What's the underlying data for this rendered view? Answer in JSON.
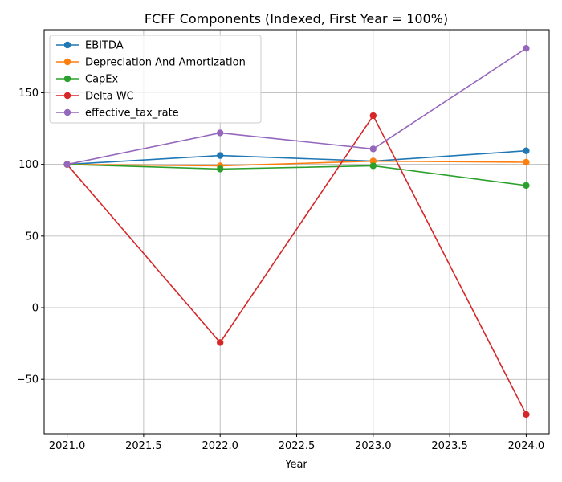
{
  "chart_data": {
    "type": "line",
    "title": "FCFF Components (Indexed, First Year = 100%)",
    "xlabel": "Year",
    "ylabel": "",
    "x": [
      2021,
      2022,
      2023,
      2024
    ],
    "xlim": [
      2020.85,
      2024.15
    ],
    "ylim": [
      -88,
      194
    ],
    "xticks": [
      2021.0,
      2021.5,
      2022.0,
      2022.5,
      2023.0,
      2023.5,
      2024.0
    ],
    "xtick_labels": [
      "2021.0",
      "2021.5",
      "2022.0",
      "2022.5",
      "2023.0",
      "2023.5",
      "2024.0"
    ],
    "yticks": [
      -50,
      0,
      50,
      100,
      150
    ],
    "ytick_labels": [
      "−50",
      "0",
      "50",
      "100",
      "150"
    ],
    "grid": true,
    "legend": "top-left",
    "series": [
      {
        "name": "EBITDA",
        "color": "#1f77b4",
        "values": [
          100,
          106.2,
          102.3,
          109.5
        ]
      },
      {
        "name": "Depreciation And Amortization",
        "color": "#ff7f0e",
        "values": [
          100,
          99.0,
          102.3,
          101.5
        ]
      },
      {
        "name": "CapEx",
        "color": "#2ca02c",
        "values": [
          100,
          96.8,
          99.0,
          85.3
        ]
      },
      {
        "name": "Delta WC",
        "color": "#d62728",
        "values": [
          100,
          -24.3,
          134.0,
          -74.5
        ]
      },
      {
        "name": "effective_tax_rate",
        "color": "#9467bd",
        "values": [
          100,
          122.0,
          110.8,
          181.0
        ]
      }
    ]
  }
}
